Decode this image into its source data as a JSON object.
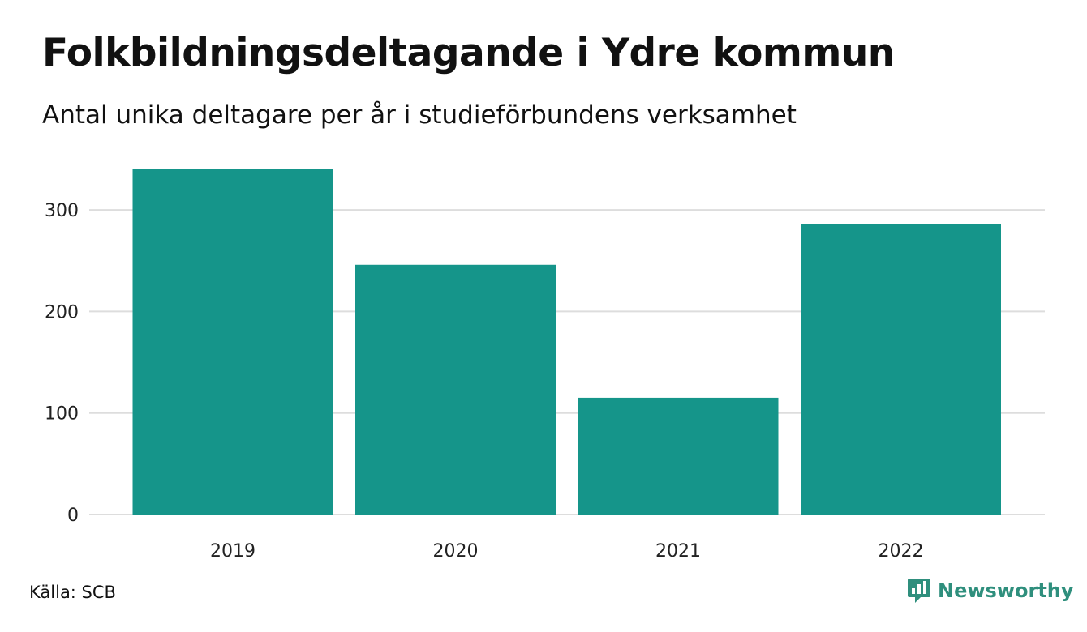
{
  "title": "Folkbildningsdeltagande i Ydre kommun",
  "subtitle": "Antal unika deltagare per år i studieförbundens verksamhet",
  "source": "Källa: SCB",
  "brand": {
    "name": "Newsworthy",
    "icon": "newsworthy-logo-icon",
    "color": "#2f8f7d"
  },
  "chart_data": {
    "type": "bar",
    "categories": [
      "2019",
      "2020",
      "2021",
      "2022"
    ],
    "values": [
      340,
      246,
      115,
      286
    ],
    "title": "Folkbildningsdeltagande i Ydre kommun",
    "subtitle": "Antal unika deltagare per år i studieförbundens verksamhet",
    "xlabel": "",
    "ylabel": "",
    "ylim": [
      0,
      340
    ],
    "yticks": [
      0,
      100,
      200,
      300
    ],
    "grid": true,
    "legend": "none",
    "bar_color": "#15958a",
    "grid_color": "#dddddd"
  }
}
